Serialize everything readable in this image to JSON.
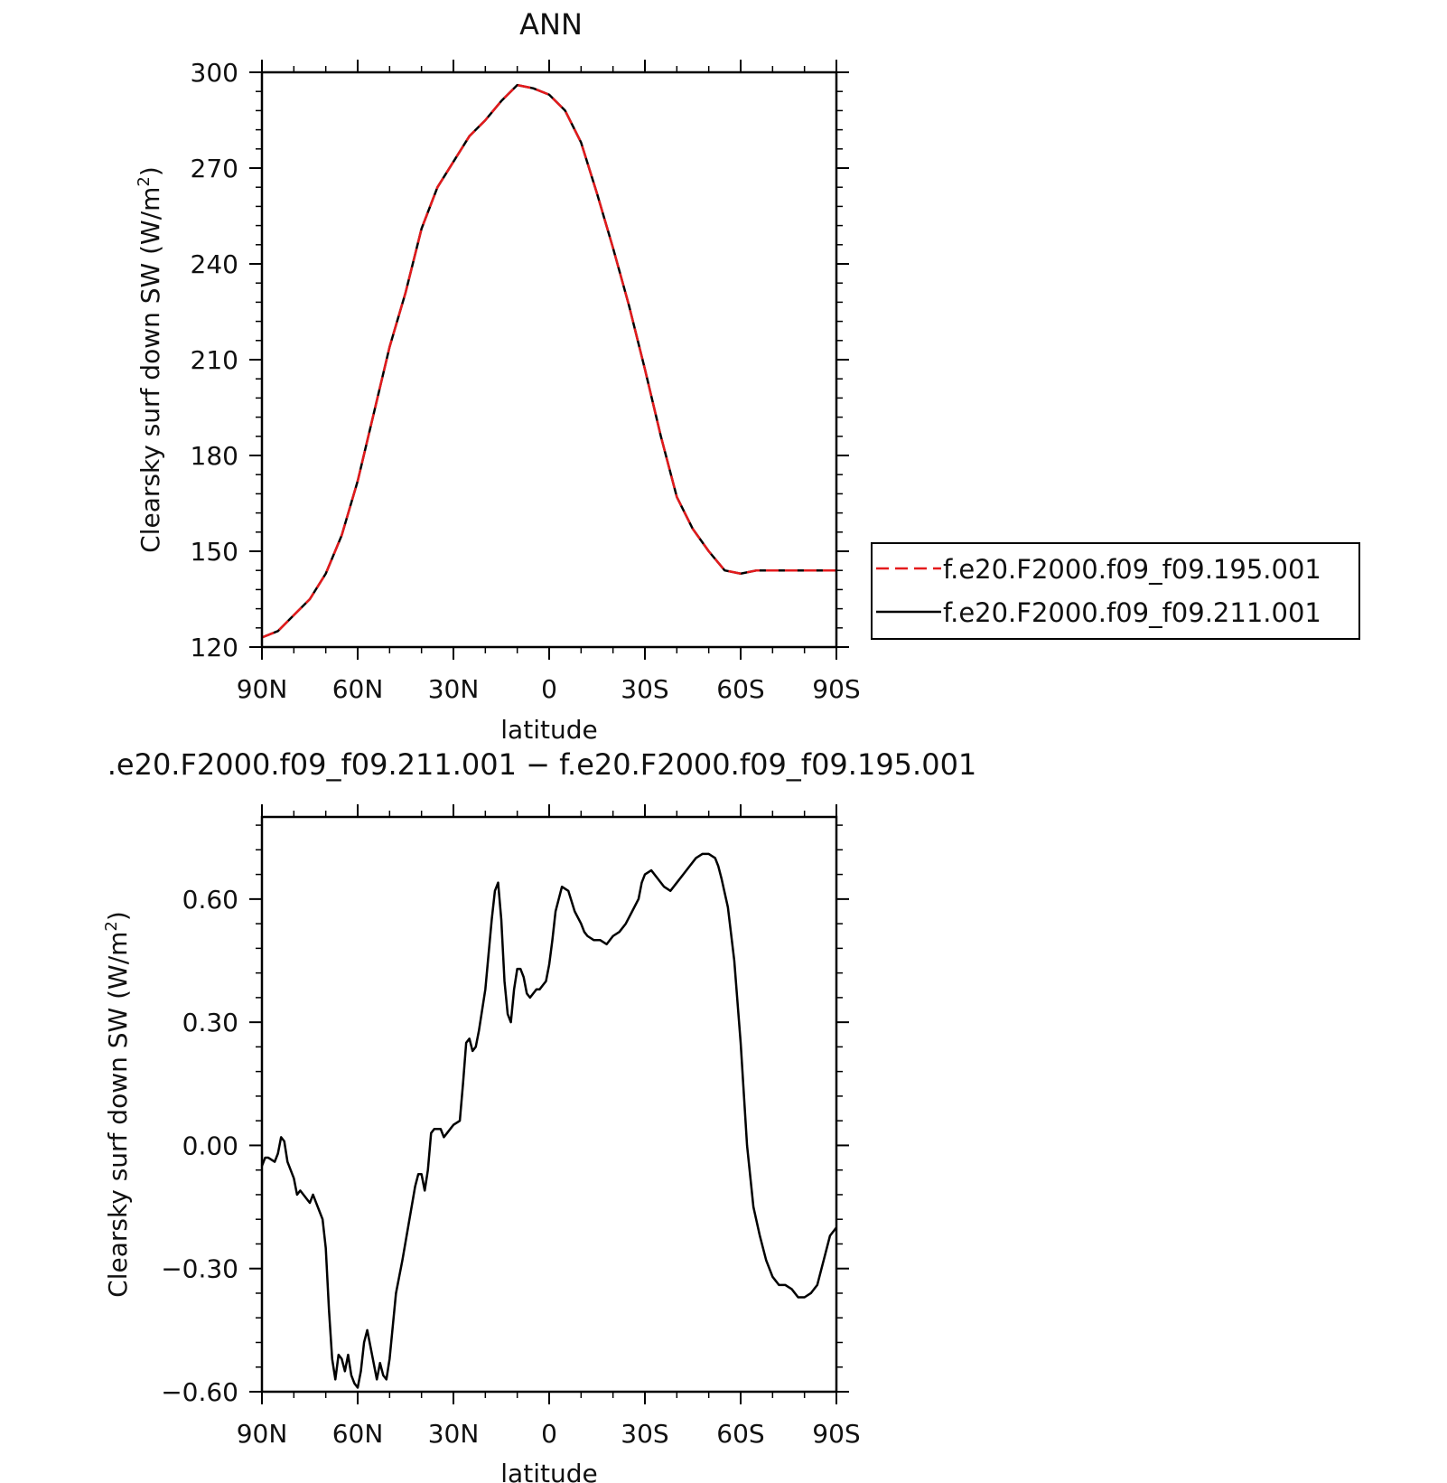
{
  "chart_data": [
    {
      "type": "line",
      "title": "ANN",
      "xlabel": "latitude",
      "ylabel": "Clearsky surf down SW (W/m",
      "ylabel_sup": "2",
      "ylabel_close": ")",
      "xlim": [
        90,
        -90
      ],
      "ylim": [
        120,
        300
      ],
      "x_ticks": [
        90,
        60,
        30,
        0,
        -30,
        -60,
        -90
      ],
      "x_tick_labels": [
        "90N",
        "60N",
        "30N",
        "0",
        "30S",
        "60S",
        "90S"
      ],
      "y_ticks": [
        120,
        150,
        180,
        210,
        240,
        270,
        300
      ],
      "y_tick_labels": [
        "120",
        "150",
        "180",
        "210",
        "240",
        "270",
        "300"
      ],
      "legend": {
        "position": "right"
      },
      "series": [
        {
          "name": "f.e20.F2000.f09_f09.195.001",
          "color": "#e41a1c",
          "dash": "dashed",
          "x": [
            90,
            85,
            80,
            75,
            70,
            65,
            60,
            55,
            50,
            45,
            40,
            35,
            30,
            25,
            20,
            15,
            10,
            5,
            0,
            -5,
            -10,
            -15,
            -20,
            -25,
            -30,
            -35,
            -40,
            -45,
            -50,
            -55,
            -60,
            -65,
            -70,
            -75,
            -80,
            -85,
            -88,
            -90
          ],
          "values": [
            123,
            125,
            130,
            135,
            143,
            155,
            172,
            193,
            214,
            231,
            251,
            264,
            272,
            280,
            285,
            291,
            296,
            295,
            293,
            288,
            278,
            262,
            245,
            227,
            207,
            186,
            167,
            157,
            150,
            144,
            143,
            144,
            144,
            144,
            144,
            144,
            144,
            144
          ]
        },
        {
          "name": "f.e20.F2000.f09_f09.211.001",
          "color": "#000000",
          "dash": "solid",
          "x": [
            90,
            85,
            80,
            75,
            70,
            65,
            60,
            55,
            50,
            45,
            40,
            35,
            30,
            25,
            20,
            15,
            10,
            5,
            0,
            -5,
            -10,
            -15,
            -20,
            -25,
            -30,
            -35,
            -40,
            -45,
            -50,
            -55,
            -60,
            -65,
            -70,
            -75,
            -80,
            -85,
            -88,
            -90
          ],
          "values": [
            123,
            125,
            130,
            135,
            143,
            155,
            172,
            193,
            214,
            231,
            251,
            264,
            272,
            280,
            285,
            291,
            296,
            295,
            293,
            288,
            278,
            262,
            245,
            227,
            207,
            186,
            167,
            157,
            150,
            144,
            143,
            144,
            144,
            144,
            144,
            144,
            144,
            144
          ]
        }
      ]
    },
    {
      "type": "line",
      "title": ".e20.F2000.f09_f09.211.001 − f.e20.F2000.f09_f09.195.001",
      "xlabel": "latitude",
      "ylabel": "Clearsky surf down SW (W/m",
      "ylabel_sup": "2",
      "ylabel_close": ")",
      "xlim": [
        90,
        -90
      ],
      "ylim": [
        -0.6,
        0.8
      ],
      "x_ticks": [
        90,
        60,
        30,
        0,
        -30,
        -60,
        -90
      ],
      "x_tick_labels": [
        "90N",
        "60N",
        "30N",
        "0",
        "30S",
        "60S",
        "90S"
      ],
      "y_ticks": [
        -0.6,
        -0.3,
        0.0,
        0.3,
        0.6
      ],
      "y_tick_labels": [
        "−0.60",
        "−0.30",
        "0.00",
        "0.30",
        "0.60"
      ],
      "series": [
        {
          "color": "#000000",
          "x": [
            90,
            89,
            88,
            86,
            85,
            84,
            83,
            82,
            80,
            79,
            78,
            76,
            75,
            74,
            73,
            72,
            71,
            70,
            69,
            68,
            67,
            66,
            65,
            64,
            63,
            62,
            61,
            60,
            59,
            58,
            57,
            56,
            55,
            54,
            53,
            52,
            51,
            50,
            49,
            48,
            46,
            44,
            42,
            41,
            40,
            39,
            38,
            37,
            36,
            34,
            33,
            32,
            30,
            28,
            27,
            26,
            25,
            24,
            23,
            22,
            20,
            18,
            17,
            16,
            15,
            14,
            13,
            12,
            11,
            10,
            9,
            8,
            7,
            6,
            5,
            4,
            3,
            2,
            1,
            0,
            -1,
            -2,
            -4,
            -6,
            -8,
            -10,
            -11,
            -12,
            -14,
            -16,
            -18,
            -20,
            -22,
            -24,
            -26,
            -28,
            -29,
            -30,
            -32,
            -34,
            -36,
            -38,
            -40,
            -42,
            -44,
            -46,
            -48,
            -50,
            -52,
            -53,
            -54,
            -56,
            -58,
            -60,
            -62,
            -64,
            -66,
            -68,
            -70,
            -72,
            -74,
            -76,
            -78,
            -80,
            -82,
            -84,
            -86,
            -88,
            -90
          ],
          "values": [
            -0.05,
            -0.03,
            -0.03,
            -0.04,
            -0.02,
            0.02,
            0.01,
            -0.04,
            -0.08,
            -0.12,
            -0.11,
            -0.13,
            -0.14,
            -0.12,
            -0.14,
            -0.16,
            -0.18,
            -0.25,
            -0.4,
            -0.52,
            -0.57,
            -0.51,
            -0.52,
            -0.55,
            -0.51,
            -0.56,
            -0.58,
            -0.59,
            -0.55,
            -0.48,
            -0.45,
            -0.49,
            -0.53,
            -0.57,
            -0.53,
            -0.56,
            -0.57,
            -0.52,
            -0.44,
            -0.36,
            -0.28,
            -0.19,
            -0.1,
            -0.07,
            -0.07,
            -0.11,
            -0.06,
            0.03,
            0.04,
            0.04,
            0.02,
            0.03,
            0.05,
            0.06,
            0.15,
            0.25,
            0.26,
            0.23,
            0.24,
            0.28,
            0.38,
            0.55,
            0.62,
            0.64,
            0.55,
            0.4,
            0.32,
            0.3,
            0.38,
            0.43,
            0.43,
            0.41,
            0.37,
            0.36,
            0.37,
            0.38,
            0.38,
            0.39,
            0.4,
            0.44,
            0.5,
            0.57,
            0.63,
            0.62,
            0.57,
            0.54,
            0.52,
            0.51,
            0.5,
            0.5,
            0.49,
            0.51,
            0.52,
            0.54,
            0.57,
            0.6,
            0.64,
            0.66,
            0.67,
            0.65,
            0.63,
            0.62,
            0.64,
            0.66,
            0.68,
            0.7,
            0.71,
            0.71,
            0.7,
            0.68,
            0.65,
            0.58,
            0.45,
            0.25,
            0.0,
            -0.15,
            -0.22,
            -0.28,
            -0.32,
            -0.34,
            -0.34,
            -0.35,
            -0.37,
            -0.37,
            -0.36,
            -0.34,
            -0.28,
            -0.22,
            -0.2
          ]
        }
      ]
    }
  ]
}
